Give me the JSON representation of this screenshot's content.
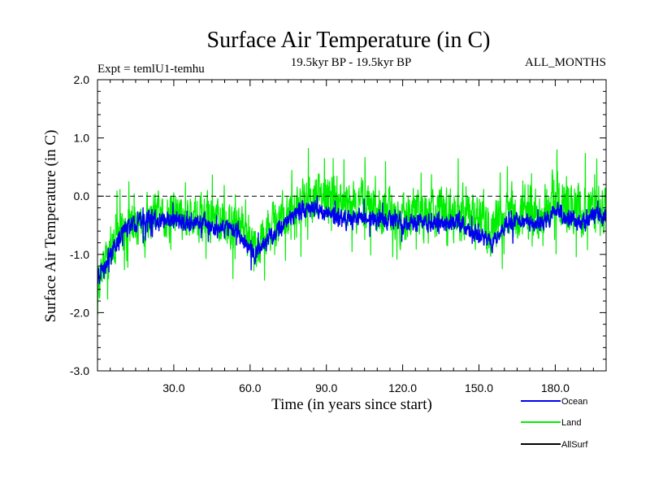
{
  "chart_data": {
    "type": "line",
    "title": "Surface Air Temperature (in C)",
    "subtitle_left": "Expt = temlU1-temhu",
    "subtitle_center": "19.5kyr BP - 19.5kyr BP",
    "subtitle_right": "ALL_MONTHS",
    "xlabel": "Time (in years since start)",
    "ylabel": "Surface Air Temperature (in C)",
    "xlim": [
      0,
      200
    ],
    "ylim": [
      -3.0,
      2.0
    ],
    "x_ticks": [
      30,
      60,
      90,
      120,
      150,
      180
    ],
    "x_tick_labels": [
      "30.0",
      "60.0",
      "90.0",
      "120.0",
      "150.0",
      "180.0"
    ],
    "y_ticks": [
      -3.0,
      -2.0,
      -1.0,
      0.0,
      1.0,
      2.0
    ],
    "y_tick_labels": [
      "-3.0",
      "-2.0",
      "-1.0",
      "0.0",
      "1.0",
      "2.0"
    ],
    "reference_line": 0.0,
    "series": [
      {
        "name": "Land",
        "color": "#00ee00",
        "x": [
          0,
          2,
          4,
          6,
          8,
          10,
          12,
          14,
          16,
          18,
          20,
          25,
          30,
          35,
          40,
          45,
          50,
          55,
          60,
          62,
          65,
          70,
          75,
          80,
          85,
          90,
          95,
          100,
          105,
          110,
          115,
          120,
          125,
          130,
          135,
          140,
          145,
          150,
          155,
          160,
          165,
          170,
          175,
          180,
          185,
          190,
          195,
          200
        ],
        "mean": [
          -1.4,
          -1.2,
          -1.0,
          -0.9,
          -0.7,
          -0.55,
          -0.5,
          -0.45,
          -0.4,
          -0.4,
          -0.35,
          -0.35,
          -0.3,
          -0.35,
          -0.3,
          -0.4,
          -0.5,
          -0.45,
          -0.75,
          -0.95,
          -0.7,
          -0.5,
          -0.3,
          -0.1,
          -0.05,
          0.0,
          -0.15,
          -0.2,
          -0.15,
          -0.3,
          -0.25,
          -0.35,
          -0.3,
          -0.3,
          -0.25,
          -0.3,
          -0.35,
          -0.45,
          -0.5,
          -0.3,
          -0.3,
          -0.3,
          -0.35,
          -0.05,
          -0.2,
          -0.3,
          -0.2,
          -0.25
        ],
        "spread": [
          0.9,
          0.9,
          0.85,
          0.85,
          0.85,
          0.85,
          0.85,
          0.85,
          0.8,
          0.8,
          0.8,
          0.8,
          0.8,
          0.8,
          0.8,
          0.8,
          0.8,
          0.8,
          0.8,
          0.8,
          0.8,
          0.8,
          0.85,
          0.85,
          0.85,
          0.85,
          0.85,
          0.85,
          0.85,
          0.85,
          0.85,
          0.85,
          0.85,
          0.85,
          0.85,
          0.9,
          0.9,
          0.9,
          0.9,
          0.9,
          0.9,
          0.9,
          0.9,
          0.9,
          0.9,
          0.9,
          0.9,
          0.9
        ]
      },
      {
        "name": "Ocean",
        "color": "#0000ee",
        "x": [
          0,
          2,
          4,
          6,
          8,
          10,
          12,
          14,
          16,
          18,
          20,
          25,
          30,
          35,
          40,
          45,
          50,
          55,
          60,
          62,
          65,
          70,
          75,
          80,
          85,
          90,
          95,
          100,
          105,
          110,
          115,
          120,
          125,
          130,
          135,
          140,
          145,
          150,
          155,
          160,
          165,
          170,
          175,
          180,
          185,
          190,
          195,
          200
        ],
        "mean": [
          -1.4,
          -1.25,
          -1.05,
          -0.95,
          -0.75,
          -0.6,
          -0.55,
          -0.5,
          -0.45,
          -0.45,
          -0.4,
          -0.45,
          -0.4,
          -0.45,
          -0.45,
          -0.55,
          -0.6,
          -0.6,
          -0.9,
          -1.0,
          -0.8,
          -0.65,
          -0.4,
          -0.25,
          -0.25,
          -0.3,
          -0.4,
          -0.4,
          -0.35,
          -0.45,
          -0.4,
          -0.5,
          -0.45,
          -0.45,
          -0.4,
          -0.45,
          -0.5,
          -0.7,
          -0.8,
          -0.5,
          -0.45,
          -0.45,
          -0.5,
          -0.2,
          -0.35,
          -0.45,
          -0.3,
          -0.35
        ],
        "spread": [
          0.35,
          0.35,
          0.3,
          0.3,
          0.3,
          0.3,
          0.3,
          0.3,
          0.3,
          0.3,
          0.3,
          0.3,
          0.3,
          0.3,
          0.3,
          0.3,
          0.3,
          0.3,
          0.3,
          0.3,
          0.3,
          0.3,
          0.3,
          0.3,
          0.3,
          0.3,
          0.3,
          0.3,
          0.3,
          0.3,
          0.3,
          0.3,
          0.3,
          0.3,
          0.3,
          0.3,
          0.3,
          0.3,
          0.3,
          0.3,
          0.3,
          0.3,
          0.3,
          0.3,
          0.3,
          0.3,
          0.3,
          0.3
        ]
      }
    ],
    "legend": [
      {
        "label": "Ocean",
        "color": "#0000ee"
      },
      {
        "label": "Land",
        "color": "#00ee00"
      },
      {
        "label": "AllSurf",
        "color": "#000000"
      }
    ]
  }
}
